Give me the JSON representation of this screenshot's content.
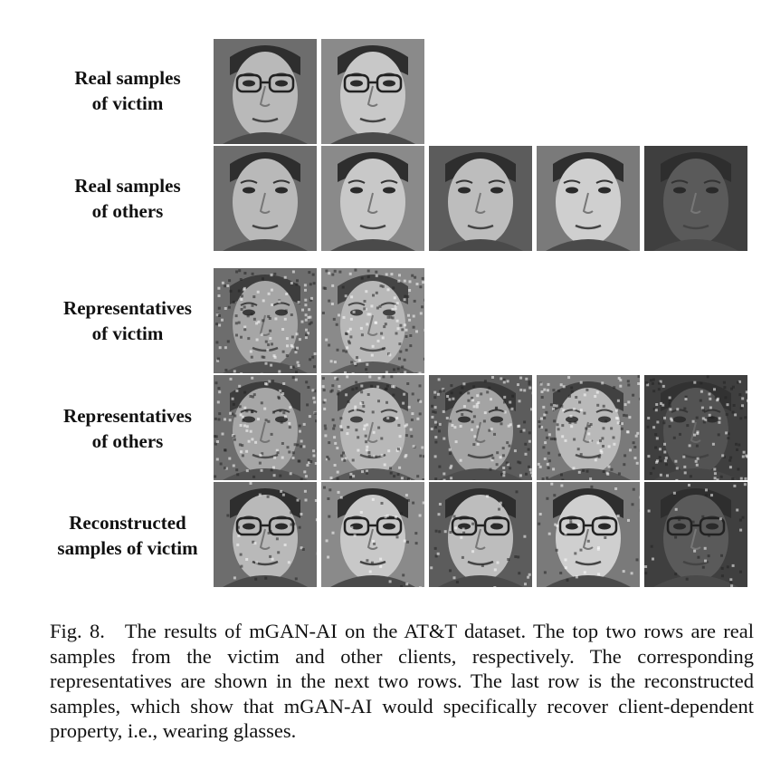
{
  "figure": {
    "rows": [
      {
        "id": "real-victim",
        "label_lines": [
          "Real samples",
          "of victim"
        ],
        "count": 2,
        "type": "real"
      },
      {
        "id": "real-others",
        "label_lines": [
          "Real samples",
          "of others"
        ],
        "count": 5,
        "type": "real"
      },
      {
        "id": "rep-victim",
        "label_lines": [
          "Representatives",
          "of victim"
        ],
        "count": 2,
        "type": "rep"
      },
      {
        "id": "rep-others",
        "label_lines": [
          "Representatives",
          "of others"
        ],
        "count": 5,
        "type": "rep"
      },
      {
        "id": "recon-victim",
        "label_lines": [
          "Reconstructed",
          "samples of victim"
        ],
        "count": 5,
        "type": "recon"
      }
    ],
    "caption": {
      "fig_label": "Fig. 8.",
      "text": "The results of mGAN-AI on the AT&T dataset. The top two rows are real samples from the victim and other clients, respectively. The corresponding representatives are shown in the next two rows. The last row is the reconstructed samples, which show that mGAN-AI would specifically recover client-dependent property, i.e., wearing glasses."
    }
  }
}
